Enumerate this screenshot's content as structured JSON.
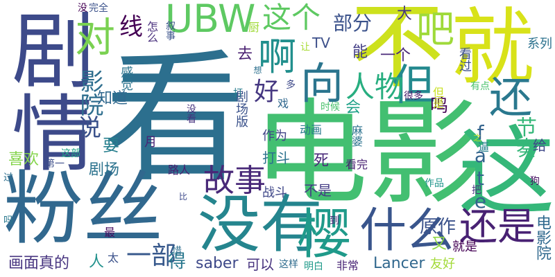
{
  "canvas": {
    "background": "#ffffff"
  },
  "words": [
    {
      "text": "看",
      "color": "#2c6f8e"
    },
    {
      "text": "电影",
      "color": "#43bf71"
    },
    {
      "text": "剧情",
      "color": "#3d4a8a"
    },
    {
      "text": "不",
      "color": "#cde11d"
    },
    {
      "text": "就",
      "color": "#d8e219"
    },
    {
      "text": "粉丝",
      "color": "#31688e"
    },
    {
      "text": "这",
      "color": "#35b779"
    },
    {
      "text": "没有",
      "color": "#25858e"
    },
    {
      "text": "UBW",
      "color": "#5ec962"
    },
    {
      "text": "这个",
      "color": "#5ec962"
    },
    {
      "text": "吧",
      "color": "#9fda3a"
    },
    {
      "text": "对",
      "color": "#7ad151"
    },
    {
      "text": "向",
      "color": "#2b758e"
    },
    {
      "text": "但",
      "color": "#23898e"
    },
    {
      "text": "啊",
      "color": "#218f8d"
    },
    {
      "text": "还",
      "color": "#2a788e"
    },
    {
      "text": "人物",
      "color": "#28ae80"
    },
    {
      "text": "好",
      "color": "#453781"
    },
    {
      "text": "樱",
      "color": "#1f9a8a"
    },
    {
      "text": "什么",
      "color": "#39558c"
    },
    {
      "text": "还是",
      "color": "#482173"
    },
    {
      "text": "故事",
      "color": "#482878"
    },
    {
      "text": "说",
      "color": "#3b528b"
    },
    {
      "text": "影院",
      "color": "#2e6e8e"
    },
    {
      "text": "线",
      "color": "#440154"
    },
    {
      "text": "部分",
      "color": "#3b528b"
    },
    {
      "text": "大",
      "color": "#453781"
    },
    {
      "text": "fate",
      "color": "#33638d"
    },
    {
      "text": "节奏",
      "color": "#35b779"
    },
    {
      "text": "一部",
      "color": "#38598c"
    },
    {
      "text": "画面真的",
      "color": "#46337f"
    },
    {
      "text": "人",
      "color": "#21918c"
    },
    {
      "text": "太",
      "color": "#3b528b"
    },
    {
      "text": "得",
      "color": "#2a788e"
    },
    {
      "text": "saber",
      "color": "#3e4989"
    },
    {
      "text": "可以",
      "color": "#46327e"
    },
    {
      "text": "这样",
      "color": "#2f6c8e"
    },
    {
      "text": "明白",
      "color": "#1f9a8a"
    },
    {
      "text": "非常",
      "color": "#482475"
    },
    {
      "text": "Lancer",
      "color": "#31688e"
    },
    {
      "text": "友好",
      "color": "#a2da37"
    },
    {
      "text": "电影院",
      "color": "#30698e"
    },
    {
      "text": "原作",
      "color": "#3b528b"
    },
    {
      "text": "又",
      "color": "#8fd744"
    },
    {
      "text": "喜欢",
      "color": "#84d44b"
    },
    {
      "text": "要",
      "color": "#277f8e"
    },
    {
      "text": "剧场",
      "color": "#2c738e"
    },
    {
      "text": "第一",
      "color": "#3d4e8a"
    },
    {
      "text": "这部",
      "color": "#20a486"
    },
    {
      "text": "月",
      "color": "#482475"
    },
    {
      "text": "知道",
      "color": "#31688e"
    },
    {
      "text": "感觉",
      "color": "#2b748e"
    },
    {
      "text": "怎么",
      "color": "#472d7b"
    },
    {
      "text": "叙事",
      "color": "#3b528b"
    },
    {
      "text": "厨",
      "color": "#a0da39"
    },
    {
      "text": "TV",
      "color": "#3c4f8a"
    },
    {
      "text": "让",
      "color": "#a8db34"
    },
    {
      "text": "去",
      "color": "#481f70"
    },
    {
      "text": "能",
      "color": "#433e85"
    },
    {
      "text": "一个",
      "color": "#482878"
    },
    {
      "text": "看过",
      "color": "#3c508b"
    },
    {
      "text": "系列",
      "color": "#2c728e"
    },
    {
      "text": "鸣",
      "color": "#440154"
    },
    {
      "text": "多",
      "color": "#3e4989"
    },
    {
      "text": "剧场版",
      "color": "#3b528b"
    },
    {
      "text": "戏",
      "color": "#31688e"
    },
    {
      "text": "打",
      "color": "#287c8e"
    },
    {
      "text": "会",
      "color": "#1fa188"
    },
    {
      "text": "但是",
      "color": "#c8e020"
    },
    {
      "text": "很多",
      "color": "#481a6c"
    },
    {
      "text": "有点",
      "color": "#4ac16d"
    },
    {
      "text": "时候",
      "color": "#4ac16d"
    },
    {
      "text": "动画",
      "color": "#2a788e"
    },
    {
      "text": "麻婆",
      "color": "#2c728e"
    },
    {
      "text": "作为",
      "color": "#414487"
    },
    {
      "text": "打斗",
      "color": "#2c728e"
    },
    {
      "text": "死",
      "color": "#482878"
    },
    {
      "text": "给",
      "color": "#3f4889"
    },
    {
      "text": "逼",
      "color": "#27808e"
    },
    {
      "text": "之",
      "color": "#b8de29"
    },
    {
      "text": "看完",
      "color": "#482071"
    },
    {
      "text": "不是",
      "color": "#443b84"
    },
    {
      "text": "战斗",
      "color": "#3f4788"
    },
    {
      "text": "路人",
      "color": "#481f70"
    },
    {
      "text": "作品",
      "color": "#1f958b"
    },
    {
      "text": "狗",
      "color": "#470e61"
    },
    {
      "text": "把",
      "color": "#46327e"
    },
    {
      "text": "就是",
      "color": "#440154"
    },
    {
      "text": "过",
      "color": "#2e6f8e"
    },
    {
      "text": "吗",
      "color": "#2a788e"
    },
    {
      "text": "比",
      "color": "#3d4a8a"
    },
    {
      "text": "惜",
      "color": "#2e6e8e"
    },
    {
      "text": "最",
      "color": "#460b5e"
    },
    {
      "text": "到",
      "color": "#482576"
    },
    {
      "text": "想",
      "color": "#2d708e"
    },
    {
      "text": "没看",
      "color": "#46327e"
    },
    {
      "text": "没",
      "color": "#440154"
    },
    {
      "text": "完全",
      "color": "#3b528b"
    }
  ]
}
